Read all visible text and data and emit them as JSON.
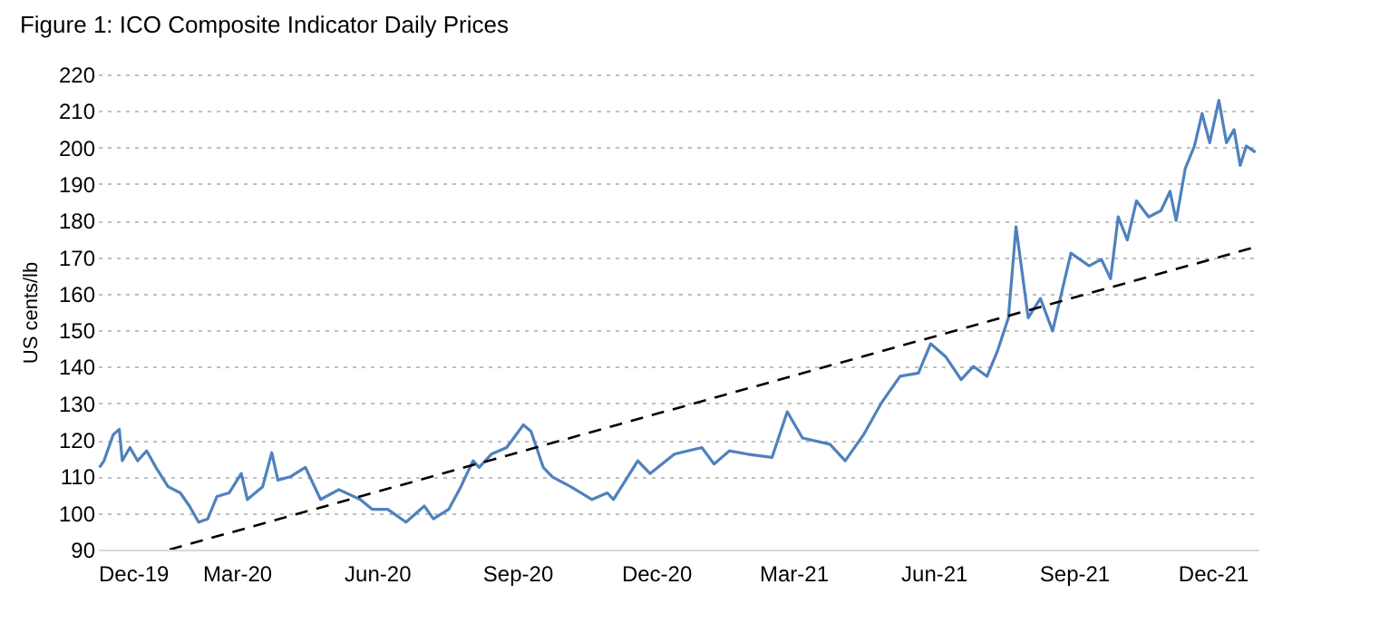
{
  "chart_data": {
    "type": "line",
    "title": "Figure 1: ICO Composite Indicator Daily Prices",
    "ylabel": "US cents/lb",
    "xlim": [
      "2019-12-01",
      "2021-12-31"
    ],
    "ylim": [
      90,
      220
    ],
    "xticks": [
      {
        "value": "2019-12-01",
        "label": "Dec-19"
      },
      {
        "value": "2020-03-01",
        "label": "Mar-20"
      },
      {
        "value": "2020-06-01",
        "label": "Jun-20"
      },
      {
        "value": "2020-09-01",
        "label": "Sep-20"
      },
      {
        "value": "2020-12-01",
        "label": "Dec-20"
      },
      {
        "value": "2021-03-01",
        "label": "Mar-21"
      },
      {
        "value": "2021-06-01",
        "label": "Jun-21"
      },
      {
        "value": "2021-09-01",
        "label": "Sep-21"
      },
      {
        "value": "2021-12-01",
        "label": "Dec-21"
      }
    ],
    "yticks": [
      90,
      100,
      110,
      120,
      130,
      140,
      150,
      160,
      170,
      180,
      190,
      200,
      210,
      220
    ],
    "grid": "y",
    "marker": "none",
    "series": [
      {
        "color": "#4f81bd",
        "line_style": "solid",
        "x": [
          "2019-12-02",
          "2019-12-05",
          "2019-12-11",
          "2019-12-15",
          "2019-12-17",
          "2019-12-22",
          "2019-12-27",
          "2020-01-02",
          "2020-01-08",
          "2020-01-16",
          "2020-01-24",
          "2020-01-30",
          "2020-02-05",
          "2020-02-11",
          "2020-02-17",
          "2020-02-25",
          "2020-03-04",
          "2020-03-08",
          "2020-03-18",
          "2020-03-24",
          "2020-03-28",
          "2020-04-05",
          "2020-04-15",
          "2020-04-25",
          "2020-05-07",
          "2020-05-21",
          "2020-05-29",
          "2020-06-08",
          "2020-06-20",
          "2020-07-02",
          "2020-07-08",
          "2020-07-18",
          "2020-07-26",
          "2020-08-03",
          "2020-08-07",
          "2020-08-15",
          "2020-08-25",
          "2020-09-05",
          "2020-09-10",
          "2020-09-18",
          "2020-09-24",
          "2020-10-06",
          "2020-10-20",
          "2020-10-30",
          "2020-11-03",
          "2020-11-19",
          "2020-11-27",
          "2020-12-13",
          "2020-12-31",
          "2021-01-08",
          "2021-01-18",
          "2021-01-30",
          "2021-02-15",
          "2021-02-25",
          "2021-03-07",
          "2021-03-25",
          "2021-04-04",
          "2021-04-16",
          "2021-04-28",
          "2021-05-10",
          "2021-05-22",
          "2021-05-30",
          "2021-06-09",
          "2021-06-19",
          "2021-06-27",
          "2021-07-06",
          "2021-07-13",
          "2021-07-20",
          "2021-07-25",
          "2021-08-02",
          "2021-08-10",
          "2021-08-18",
          "2021-08-30",
          "2021-09-11",
          "2021-09-19",
          "2021-09-25",
          "2021-09-30",
          "2021-10-06",
          "2021-10-12",
          "2021-10-20",
          "2021-10-28",
          "2021-11-03",
          "2021-11-07",
          "2021-11-13",
          "2021-11-19",
          "2021-11-24",
          "2021-11-29",
          "2021-12-05",
          "2021-12-10",
          "2021-12-15",
          "2021-12-19",
          "2021-12-23",
          "2021-12-29"
        ],
        "values": [
          112.5,
          114.3,
          121.4,
          122.9,
          114.3,
          117.9,
          114.3,
          117,
          112.5,
          107.2,
          105.5,
          101.9,
          97.5,
          98.4,
          104.5,
          105.5,
          110.8,
          103.7,
          107.2,
          116.5,
          109,
          109.9,
          112.5,
          103.7,
          106.4,
          103.7,
          101,
          101,
          97.5,
          101.9,
          98.4,
          101,
          107.2,
          114.3,
          112.5,
          116.1,
          117.9,
          124.1,
          122.3,
          112.5,
          109.9,
          107.2,
          103.7,
          105.5,
          103.7,
          114.3,
          110.8,
          116.1,
          117.9,
          113.4,
          117,
          116.1,
          115.2,
          127.7,
          120.5,
          118.8,
          114.3,
          121.4,
          130.3,
          137.4,
          138.3,
          146.3,
          142.7,
          136.5,
          140.1,
          137.4,
          144.5,
          153.4,
          178.3,
          153.4,
          158.7,
          149.8,
          171.1,
          167.6,
          169.4,
          164.1,
          181,
          174.7,
          185.4,
          181,
          182.7,
          188,
          180,
          194.3,
          200.4,
          209.3,
          201.3,
          212.9,
          201.3,
          204.9,
          195.1,
          200.4,
          198.7
        ]
      },
      {
        "type": "line",
        "color": "#000000",
        "line_style": "dashed",
        "x": [
          "2020-01-17",
          "2021-12-31"
        ],
        "values": [
          90,
          173
        ]
      }
    ]
  }
}
